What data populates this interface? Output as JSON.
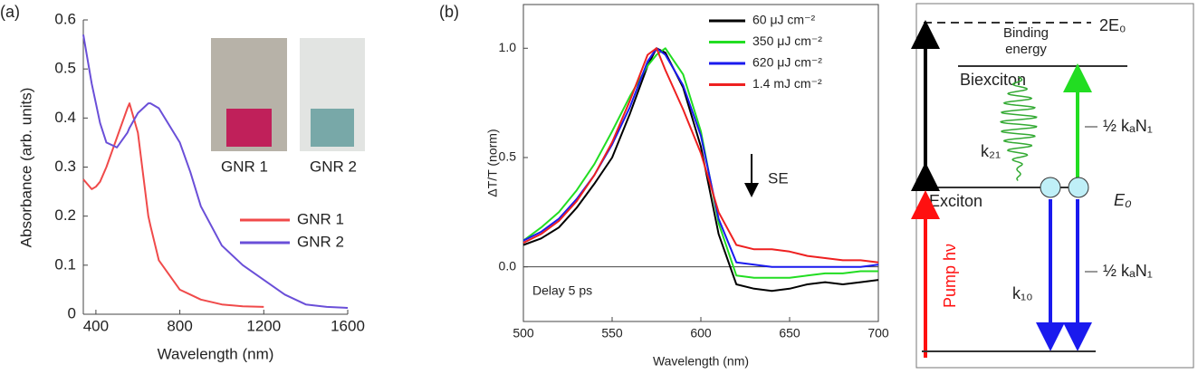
{
  "chart_data": [
    {
      "type": "line",
      "panel_label": "(a)",
      "xlabel": "Wavelength (nm)",
      "ylabel": "Absorbance (arb. units)",
      "xlim": [
        340,
        1600
      ],
      "xticks": [
        400,
        800,
        1200,
        1600
      ],
      "ylim": [
        0,
        0.6
      ],
      "yticks": [
        0,
        0.1,
        0.2,
        0.3,
        0.4,
        0.5,
        0.6
      ],
      "annotations": [
        "GNR 1",
        "GNR 2"
      ],
      "x": [
        340,
        380,
        400,
        420,
        450,
        500,
        550,
        560,
        600,
        650,
        660,
        700,
        800,
        850,
        900,
        1000,
        1100,
        1200,
        1300,
        1400,
        1500,
        1600
      ],
      "series": [
        {
          "name": "GNR 1",
          "color": "#f04a4a",
          "values": [
            0.275,
            0.255,
            0.26,
            0.27,
            0.3,
            0.36,
            0.42,
            0.43,
            0.37,
            0.2,
            0.18,
            0.11,
            0.05,
            0.04,
            0.03,
            0.02,
            0.016,
            0.015,
            null,
            null,
            null,
            null
          ]
        },
        {
          "name": "GNR 2",
          "color": "#6a4fd8",
          "values": [
            0.57,
            0.47,
            0.43,
            0.39,
            0.35,
            0.34,
            0.37,
            0.38,
            0.41,
            0.43,
            0.43,
            0.42,
            0.35,
            0.29,
            0.22,
            0.14,
            0.1,
            0.07,
            0.04,
            0.02,
            0.015,
            0.013
          ]
        }
      ],
      "legend": "lower-right"
    },
    {
      "type": "line",
      "panel_label": "(b)",
      "xlabel": "Wavelength (nm)",
      "ylabel": "ΔT/T (norm)",
      "xlim": [
        500,
        700
      ],
      "xticks": [
        500,
        550,
        600,
        650,
        700
      ],
      "ylim": [
        -0.25,
        1.2
      ],
      "yticks": [
        {
          "value": 0,
          "label": "0.0"
        },
        0.5,
        {
          "value": 1,
          "label": "1.0"
        }
      ],
      "annotations": [
        "SE",
        "Delay 5 ps"
      ],
      "x": [
        500,
        510,
        520,
        530,
        540,
        550,
        560,
        570,
        575,
        580,
        590,
        600,
        610,
        620,
        630,
        640,
        650,
        660,
        670,
        680,
        690,
        700
      ],
      "series": [
        {
          "name": "60 μJ cm⁻²",
          "color": "#000000",
          "values": [
            0.1,
            0.13,
            0.18,
            0.27,
            0.38,
            0.5,
            0.7,
            0.92,
            1.0,
            0.98,
            0.82,
            0.55,
            0.15,
            -0.08,
            -0.1,
            -0.11,
            -0.1,
            -0.08,
            -0.07,
            -0.08,
            -0.07,
            -0.06
          ]
        },
        {
          "name": "350 μJ cm⁻²",
          "color": "#22dd22",
          "values": [
            0.12,
            0.18,
            0.25,
            0.35,
            0.47,
            0.62,
            0.78,
            0.92,
            0.97,
            1.0,
            0.88,
            0.62,
            0.2,
            -0.04,
            -0.05,
            -0.05,
            -0.05,
            -0.04,
            -0.03,
            -0.03,
            -0.02,
            -0.02
          ]
        },
        {
          "name": "620 μJ cm⁻²",
          "color": "#1a1aee",
          "values": [
            0.12,
            0.16,
            0.22,
            0.31,
            0.42,
            0.56,
            0.73,
            0.94,
            1.0,
            0.97,
            0.83,
            0.6,
            0.22,
            0.02,
            0.01,
            0.0,
            0.0,
            0.0,
            0.0,
            0.0,
            0.0,
            0.01
          ]
        },
        {
          "name": "1.4 mJ cm⁻²",
          "color": "#ee2020",
          "values": [
            0.11,
            0.15,
            0.21,
            0.3,
            0.42,
            0.57,
            0.76,
            0.97,
            1.0,
            0.9,
            0.72,
            0.52,
            0.25,
            0.1,
            0.08,
            0.08,
            0.07,
            0.05,
            0.04,
            0.03,
            0.03,
            0.02
          ]
        }
      ],
      "legend": "upper-right"
    }
  ],
  "diagram": {
    "labels": [
      "2E₀",
      "Binding",
      "energy",
      "Biexciton",
      "Exciton",
      "E₀",
      "k₂₁",
      "½ kₐN₁",
      "k₁₀",
      "½ kₐN₁",
      "Pump hν"
    ]
  }
}
